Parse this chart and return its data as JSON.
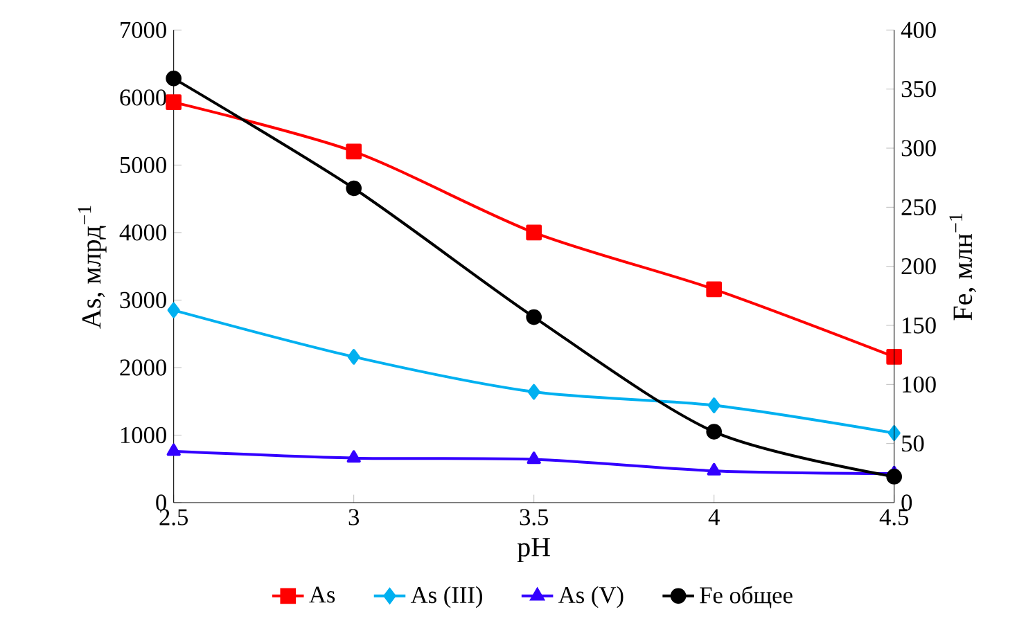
{
  "chart_data": {
    "type": "line",
    "xlabel": "pH",
    "ylabel": "As, млрд$^{−1}$",
    "y2label": "Fe, млн$^{−1}$",
    "x": [
      2.5,
      3,
      3.5,
      4,
      4.5
    ],
    "xlim": [
      2.5,
      4.5
    ],
    "xticks": [
      2.5,
      3,
      3.5,
      4,
      4.5
    ],
    "ylim": [
      0,
      7000
    ],
    "yticks": [
      0,
      1000,
      2000,
      3000,
      4000,
      5000,
      6000,
      7000
    ],
    "y2lim": [
      0,
      400
    ],
    "y2ticks": [
      0,
      50,
      100,
      150,
      200,
      250,
      300,
      350,
      400
    ],
    "grid": false,
    "legend": "bottom",
    "series": [
      {
        "name": "As",
        "color": "#ff0000",
        "marker": "square",
        "values": [
          5930,
          5200,
          4000,
          3160,
          2160
        ]
      },
      {
        "name": "As (III)",
        "color": "#00b0f0",
        "marker": "diamond",
        "values": [
          2850,
          2160,
          1640,
          1440,
          1030
        ]
      },
      {
        "name": "As (V)",
        "color": "#3300ff",
        "marker": "triangle",
        "values": [
          760,
          660,
          640,
          470,
          430
        ]
      },
      {
        "name": "Fe общее",
        "color": "#000000",
        "marker": "circle",
        "axis": "y2",
        "values": [
          359,
          266,
          157,
          60,
          22
        ]
      }
    ]
  }
}
